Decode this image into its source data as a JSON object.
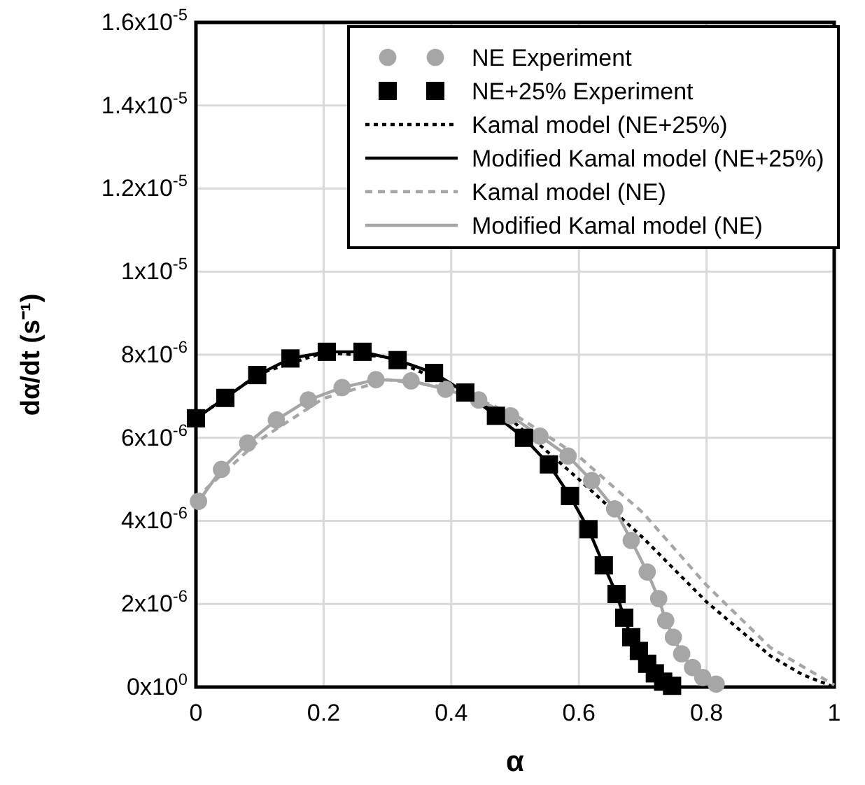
{
  "chart_data": {
    "type": "line",
    "xlabel": "α",
    "ylabel": "dα/dt (s⁻¹)",
    "xlim": [
      0,
      1
    ],
    "xticks": [
      0,
      0.2,
      0.4,
      0.6,
      0.8,
      1
    ],
    "ylim": [
      0,
      1.6e-05
    ],
    "yticks": [
      {
        "value": 0,
        "label": "0x10$^{0}$"
      },
      {
        "value": 2e-06,
        "label": "2x10$^{-6}$"
      },
      {
        "value": 4e-06,
        "label": "4x10$^{-6}$"
      },
      {
        "value": 6e-06,
        "label": "6x10$^{-6}$"
      },
      {
        "value": 8e-06,
        "label": "8x10$^{-6}$"
      },
      {
        "value": 1e-05,
        "label": "1x10$^{-5}$"
      },
      {
        "value": 1.2e-05,
        "label": "1.2x10$^{-5}$"
      },
      {
        "value": 1.4e-05,
        "label": "1.4x10$^{-5}$"
      },
      {
        "value": 1.6e-05,
        "label": "1.6x10$^{-5}$"
      }
    ],
    "grid": true,
    "legend": "top right",
    "series": [
      {
        "name": "NE Experiment",
        "type": "scatter",
        "marker": "circle",
        "color": "#a6a6a6",
        "x": [
          0.004,
          0.04,
          0.081,
          0.126,
          0.176,
          0.229,
          0.282,
          0.337,
          0.391,
          0.443,
          0.493,
          0.539,
          0.583,
          0.62,
          0.656,
          0.682,
          0.707,
          0.725,
          0.736,
          0.748,
          0.761,
          0.778,
          0.794,
          0.815
        ],
        "values": [
          4.47e-06,
          5.24e-06,
          5.87e-06,
          6.43e-06,
          6.91e-06,
          7.21e-06,
          7.4e-06,
          7.37e-06,
          7.17e-06,
          6.91e-06,
          6.53e-06,
          6.04e-06,
          5.56e-06,
          4.97e-06,
          4.29e-06,
          3.53e-06,
          2.77e-06,
          2.13e-06,
          1.6e-06,
          1.2e-06,
          8e-07,
          4.7e-07,
          2.3e-07,
          7e-08
        ]
      },
      {
        "name": "NE+25% Experiment",
        "type": "scatter",
        "marker": "square",
        "color": "#000000",
        "x": [
          0,
          0.046,
          0.096,
          0.148,
          0.205,
          0.261,
          0.316,
          0.373,
          0.422,
          0.47,
          0.514,
          0.553,
          0.586,
          0.615,
          0.639,
          0.659,
          0.671,
          0.682,
          0.694,
          0.707,
          0.719,
          0.732,
          0.746
        ],
        "values": [
          6.47e-06,
          6.96e-06,
          7.51e-06,
          7.91e-06,
          8.07e-06,
          8.07e-06,
          7.87e-06,
          7.56e-06,
          7.09e-06,
          6.53e-06,
          6e-06,
          5.36e-06,
          4.6e-06,
          3.8e-06,
          2.93e-06,
          2.24e-06,
          1.67e-06,
          1.2e-06,
          8.7e-07,
          5.6e-07,
          3.3e-07,
          1.3e-07,
          3e-08
        ]
      },
      {
        "name": "Kamal model (NE+25%)",
        "type": "line",
        "marker": "none",
        "line_style": "dotted",
        "color": "#000000",
        "x": [
          0,
          0.1,
          0.2,
          0.3,
          0.4,
          0.5,
          0.6,
          0.7,
          0.8,
          0.9,
          0.95,
          1
        ],
        "values": [
          6.47e-06,
          7.55e-06,
          8.05e-06,
          7.95e-06,
          7.25e-06,
          6.35e-06,
          5e-06,
          3.6e-06,
          2.05e-06,
          7.5e-07,
          3e-07,
          0
        ]
      },
      {
        "name": "Modified Kamal model (NE+25%)",
        "type": "line",
        "marker": "none",
        "line_style": "solid",
        "color": "#000000",
        "x": [
          0,
          0.046,
          0.096,
          0.148,
          0.205,
          0.261,
          0.316,
          0.373,
          0.422,
          0.47,
          0.514,
          0.553,
          0.586,
          0.615,
          0.639,
          0.659,
          0.671,
          0.682,
          0.694,
          0.707,
          0.719,
          0.732,
          0.746
        ],
        "values": [
          6.47e-06,
          6.96e-06,
          7.51e-06,
          7.91e-06,
          8.07e-06,
          8.07e-06,
          7.87e-06,
          7.56e-06,
          7.09e-06,
          6.53e-06,
          6e-06,
          5.36e-06,
          4.6e-06,
          3.8e-06,
          2.93e-06,
          2.24e-06,
          1.67e-06,
          1.2e-06,
          8.7e-07,
          5.6e-07,
          3.3e-07,
          1.3e-07,
          3e-08
        ]
      },
      {
        "name": "Kamal model (NE)",
        "type": "line",
        "marker": "none",
        "line_style": "dashed",
        "color": "#a6a6a6",
        "x": [
          0,
          0.1,
          0.2,
          0.3,
          0.4,
          0.5,
          0.6,
          0.7,
          0.8,
          0.9,
          1
        ],
        "values": [
          4.55e-06,
          5.95e-06,
          6.95e-06,
          7.4e-06,
          7.2e-06,
          6.55e-06,
          5.55e-06,
          4.2e-06,
          2.45e-06,
          9.5e-07,
          5e-08
        ]
      },
      {
        "name": "Modified Kamal model (NE)",
        "type": "line",
        "marker": "none",
        "line_style": "solid",
        "color": "#a6a6a6",
        "x": [
          0.004,
          0.04,
          0.081,
          0.126,
          0.176,
          0.229,
          0.282,
          0.337,
          0.391,
          0.443,
          0.493,
          0.539,
          0.583,
          0.62,
          0.656,
          0.682,
          0.707,
          0.725,
          0.736,
          0.748,
          0.761,
          0.778,
          0.794,
          0.815
        ],
        "values": [
          4.47e-06,
          5.24e-06,
          5.87e-06,
          6.43e-06,
          6.91e-06,
          7.21e-06,
          7.4e-06,
          7.37e-06,
          7.17e-06,
          6.91e-06,
          6.53e-06,
          6.04e-06,
          5.56e-06,
          4.97e-06,
          4.29e-06,
          3.53e-06,
          2.77e-06,
          2.13e-06,
          1.6e-06,
          1.2e-06,
          8e-07,
          4.7e-07,
          2.3e-07,
          7e-08
        ]
      }
    ]
  }
}
